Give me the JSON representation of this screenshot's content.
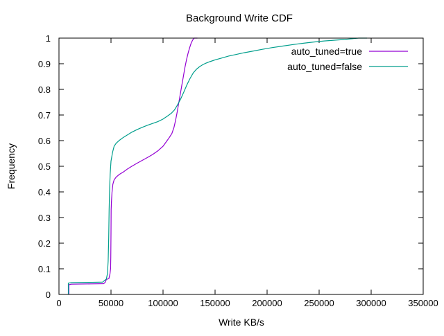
{
  "chart_data": {
    "type": "line",
    "title": "Background Write CDF",
    "xlabel": "Write KB/s",
    "ylabel": "Frequency",
    "xlim": [
      0,
      350000
    ],
    "ylim": [
      0,
      1
    ],
    "grid": false,
    "legend_position": "top-right-inside",
    "background_color": "#ffffff",
    "border_color": "#000000",
    "text_color": "#000000",
    "xticks": {
      "values": [
        0,
        50000,
        100000,
        150000,
        200000,
        250000,
        300000,
        350000
      ],
      "labels": [
        "0",
        "50000",
        "100000",
        "150000",
        "200000",
        "250000",
        "300000",
        "350000"
      ]
    },
    "yticks": {
      "values": [
        0,
        0.1,
        0.2,
        0.3,
        0.4,
        0.5,
        0.6,
        0.7,
        0.8,
        0.9,
        1
      ],
      "labels": [
        "0",
        "0.1",
        "0.2",
        "0.3",
        "0.4",
        "0.5",
        "0.6",
        "0.7",
        "0.8",
        "0.9",
        "1"
      ]
    },
    "series": [
      {
        "name": "auto_tuned=true",
        "color": "#9400d3",
        "points": [
          [
            9500,
            0
          ],
          [
            9500,
            0.038
          ],
          [
            12000,
            0.04
          ],
          [
            30000,
            0.041
          ],
          [
            43000,
            0.042
          ],
          [
            44500,
            0.048
          ],
          [
            45500,
            0.058
          ],
          [
            48000,
            0.062
          ],
          [
            49000,
            0.08
          ],
          [
            49600,
            0.1
          ],
          [
            49800,
            0.145
          ],
          [
            50000,
            0.24
          ],
          [
            50100,
            0.33
          ],
          [
            50400,
            0.36
          ],
          [
            51000,
            0.4
          ],
          [
            51800,
            0.43
          ],
          [
            53000,
            0.447
          ],
          [
            55000,
            0.458
          ],
          [
            58000,
            0.468
          ],
          [
            62000,
            0.478
          ],
          [
            66000,
            0.49
          ],
          [
            70000,
            0.5
          ],
          [
            75000,
            0.512
          ],
          [
            80000,
            0.523
          ],
          [
            85000,
            0.534
          ],
          [
            90000,
            0.546
          ],
          [
            95000,
            0.56
          ],
          [
            100000,
            0.578
          ],
          [
            103000,
            0.595
          ],
          [
            106000,
            0.612
          ],
          [
            108500,
            0.628
          ],
          [
            110500,
            0.652
          ],
          [
            112000,
            0.678
          ],
          [
            113500,
            0.71
          ],
          [
            115000,
            0.745
          ],
          [
            116500,
            0.78
          ],
          [
            118000,
            0.815
          ],
          [
            119500,
            0.85
          ],
          [
            121000,
            0.885
          ],
          [
            122500,
            0.915
          ],
          [
            124000,
            0.94
          ],
          [
            125500,
            0.962
          ],
          [
            127000,
            0.98
          ],
          [
            128500,
            0.993
          ],
          [
            130000,
            1.0
          ],
          [
            133000,
            1.0
          ]
        ]
      },
      {
        "name": "auto_tuned=false",
        "color": "#009e8c",
        "points": [
          [
            9000,
            0
          ],
          [
            9000,
            0.044
          ],
          [
            12000,
            0.046
          ],
          [
            30000,
            0.047
          ],
          [
            42000,
            0.048
          ],
          [
            44000,
            0.055
          ],
          [
            45500,
            0.06
          ],
          [
            46500,
            0.08
          ],
          [
            47300,
            0.13
          ],
          [
            47800,
            0.22
          ],
          [
            48200,
            0.33
          ],
          [
            48700,
            0.42
          ],
          [
            49200,
            0.47
          ],
          [
            50000,
            0.52
          ],
          [
            51500,
            0.555
          ],
          [
            53000,
            0.578
          ],
          [
            55000,
            0.59
          ],
          [
            58000,
            0.601
          ],
          [
            62000,
            0.613
          ],
          [
            66000,
            0.623
          ],
          [
            70000,
            0.633
          ],
          [
            75000,
            0.643
          ],
          [
            80000,
            0.652
          ],
          [
            85000,
            0.66
          ],
          [
            90000,
            0.667
          ],
          [
            95000,
            0.674
          ],
          [
            100000,
            0.684
          ],
          [
            105000,
            0.698
          ],
          [
            108000,
            0.707
          ],
          [
            111000,
            0.72
          ],
          [
            114000,
            0.74
          ],
          [
            117000,
            0.763
          ],
          [
            120000,
            0.79
          ],
          [
            123000,
            0.818
          ],
          [
            126000,
            0.843
          ],
          [
            129000,
            0.864
          ],
          [
            132000,
            0.878
          ],
          [
            135000,
            0.888
          ],
          [
            138000,
            0.896
          ],
          [
            141000,
            0.902
          ],
          [
            145000,
            0.908
          ],
          [
            150000,
            0.915
          ],
          [
            156000,
            0.922
          ],
          [
            163000,
            0.93
          ],
          [
            170000,
            0.936
          ],
          [
            178000,
            0.943
          ],
          [
            186000,
            0.949
          ],
          [
            195000,
            0.956
          ],
          [
            205000,
            0.963
          ],
          [
            215000,
            0.969
          ],
          [
            225000,
            0.975
          ],
          [
            235000,
            0.98
          ],
          [
            245000,
            0.985
          ],
          [
            255000,
            0.989
          ],
          [
            265000,
            0.992
          ],
          [
            275000,
            0.995
          ],
          [
            283000,
            0.998
          ],
          [
            288000,
            1.0
          ],
          [
            296000,
            1.0
          ]
        ]
      }
    ]
  }
}
